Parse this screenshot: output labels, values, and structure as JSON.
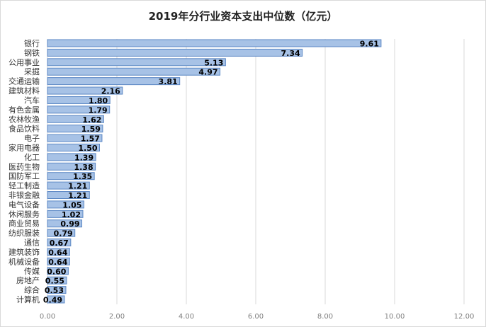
{
  "chart_data": {
    "type": "bar",
    "orientation": "horizontal",
    "title": "2019年分行业资本支出中位数（亿元）",
    "xlabel": "",
    "ylabel": "",
    "xlim": [
      0,
      12
    ],
    "xticks": [
      "0.00",
      "2.00",
      "4.00",
      "6.00",
      "8.00",
      "10.00",
      "12.00"
    ],
    "grid": true,
    "legend": "none",
    "colors": {
      "bar_fill": "#a7c2e6",
      "bar_stroke": "#5b87c4",
      "grid": "#d9d9d9"
    },
    "categories": [
      "银行",
      "钢铁",
      "公用事业",
      "采掘",
      "交通运输",
      "建筑材料",
      "汽车",
      "有色金属",
      "农林牧渔",
      "食品饮料",
      "电子",
      "家用电器",
      "化工",
      "医药生物",
      "国防军工",
      "轻工制造",
      "非银金融",
      "电气设备",
      "休闲服务",
      "商业贸易",
      "纺织服装",
      "通信",
      "建筑装饰",
      "机械设备",
      "传媒",
      "房地产",
      "综合",
      "计算机"
    ],
    "values": [
      9.61,
      7.34,
      5.13,
      4.97,
      3.81,
      2.16,
      1.8,
      1.79,
      1.62,
      1.59,
      1.57,
      1.5,
      1.39,
      1.38,
      1.35,
      1.21,
      1.21,
      1.05,
      1.02,
      0.99,
      0.79,
      0.67,
      0.64,
      0.64,
      0.6,
      0.55,
      0.53,
      0.49
    ],
    "labels": [
      "9.61",
      "7.34",
      "5.13",
      "4.97",
      "3.81",
      "2.16",
      "1.80",
      "1.79",
      "1.62",
      "1.59",
      "1.57",
      "1.50",
      "1.39",
      "1.38",
      "1.35",
      "1.21",
      "1.21",
      "1.05",
      "1.02",
      "0.99",
      "0.79",
      "0.67",
      "0.64",
      "0.64",
      "0.60",
      "0.55",
      "0.53",
      "0.49"
    ]
  }
}
